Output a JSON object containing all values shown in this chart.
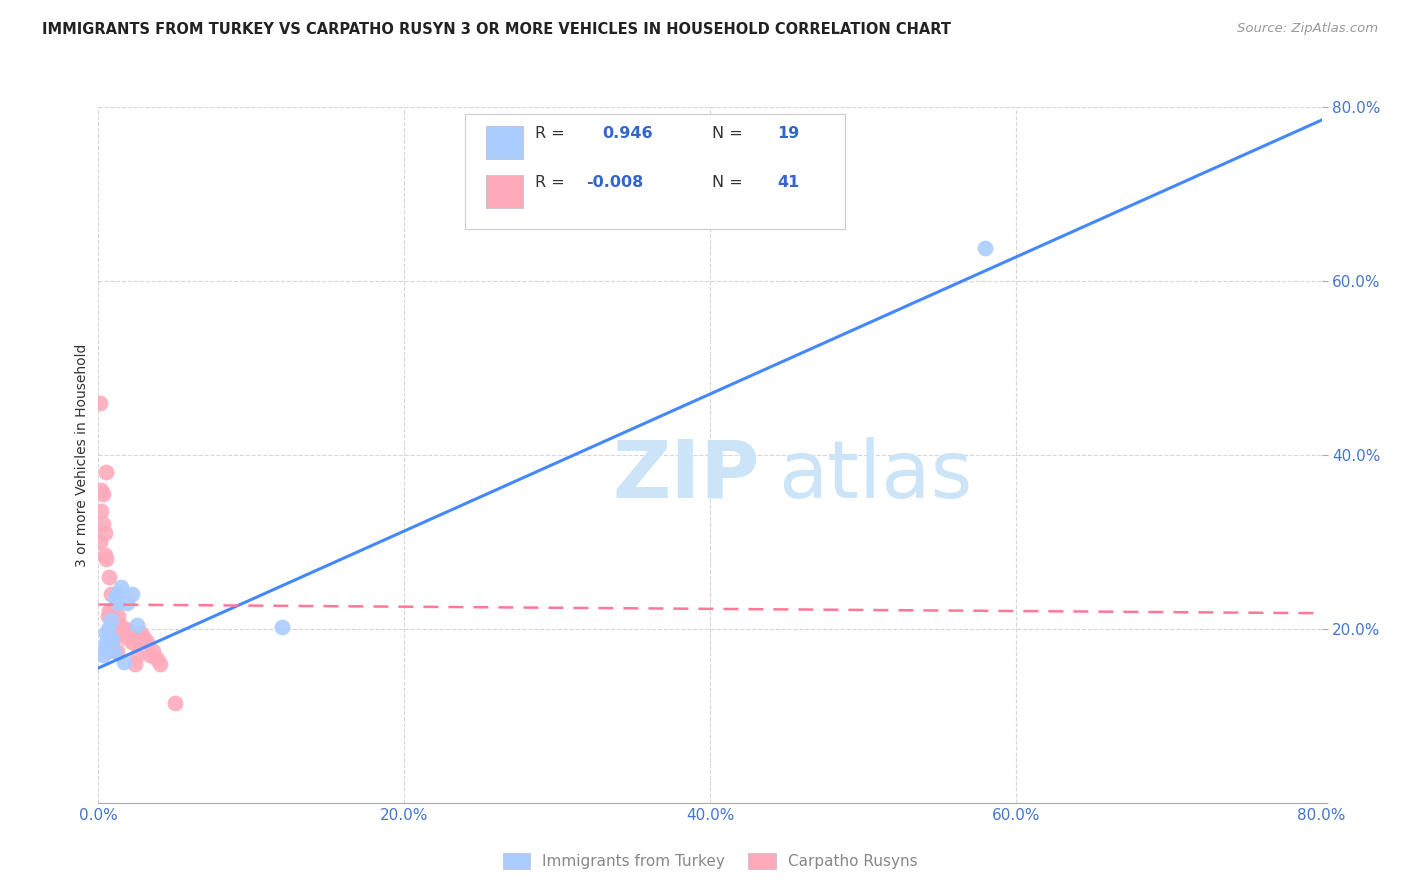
{
  "title": "IMMIGRANTS FROM TURKEY VS CARPATHO RUSYN 3 OR MORE VEHICLES IN HOUSEHOLD CORRELATION CHART",
  "source": "Source: ZipAtlas.com",
  "ylabel": "3 or more Vehicles in Household",
  "xlim": [
    0.0,
    0.8
  ],
  "ylim": [
    0.0,
    0.8
  ],
  "xtick_labels": [
    "0.0%",
    "20.0%",
    "40.0%",
    "60.0%",
    "80.0%"
  ],
  "xtick_vals": [
    0.0,
    0.2,
    0.4,
    0.6,
    0.8
  ],
  "ytick_vals": [
    0.0,
    0.2,
    0.4,
    0.6,
    0.8
  ],
  "grid_color": "#cccccc",
  "background_color": "#ffffff",
  "blue_color": "#aaccff",
  "blue_line_color": "#4488ff",
  "pink_color": "#ffaabb",
  "pink_line_color": "#ff7799",
  "legend_label1": "Immigrants from Turkey",
  "legend_label2": "Carpatho Rusyns",
  "turkey_x": [
    0.003,
    0.004,
    0.005,
    0.005,
    0.006,
    0.007,
    0.008,
    0.009,
    0.01,
    0.011,
    0.012,
    0.013,
    0.015,
    0.017,
    0.019,
    0.022,
    0.025,
    0.12,
    0.58
  ],
  "turkey_y": [
    0.17,
    0.178,
    0.185,
    0.195,
    0.2,
    0.19,
    0.21,
    0.188,
    0.175,
    0.235,
    0.24,
    0.23,
    0.248,
    0.162,
    0.23,
    0.24,
    0.205,
    0.202,
    0.638
  ],
  "rusyn_x": [
    0.001,
    0.001,
    0.002,
    0.002,
    0.003,
    0.003,
    0.004,
    0.004,
    0.005,
    0.005,
    0.006,
    0.006,
    0.007,
    0.007,
    0.008,
    0.008,
    0.009,
    0.01,
    0.01,
    0.011,
    0.012,
    0.012,
    0.013,
    0.014,
    0.015,
    0.016,
    0.018,
    0.019,
    0.02,
    0.022,
    0.024,
    0.025,
    0.027,
    0.028,
    0.03,
    0.032,
    0.034,
    0.036,
    0.038,
    0.04,
    0.05
  ],
  "rusyn_y": [
    0.46,
    0.3,
    0.36,
    0.335,
    0.355,
    0.32,
    0.31,
    0.285,
    0.38,
    0.28,
    0.215,
    0.175,
    0.26,
    0.22,
    0.2,
    0.24,
    0.22,
    0.21,
    0.19,
    0.2,
    0.195,
    0.175,
    0.215,
    0.205,
    0.2,
    0.195,
    0.2,
    0.19,
    0.195,
    0.185,
    0.16,
    0.17,
    0.185,
    0.195,
    0.19,
    0.185,
    0.17,
    0.175,
    0.165,
    0.16,
    0.115
  ],
  "blue_line": [
    0.0,
    0.155,
    0.8,
    0.785
  ],
  "pink_line": [
    0.0,
    0.228,
    0.8,
    0.218
  ]
}
